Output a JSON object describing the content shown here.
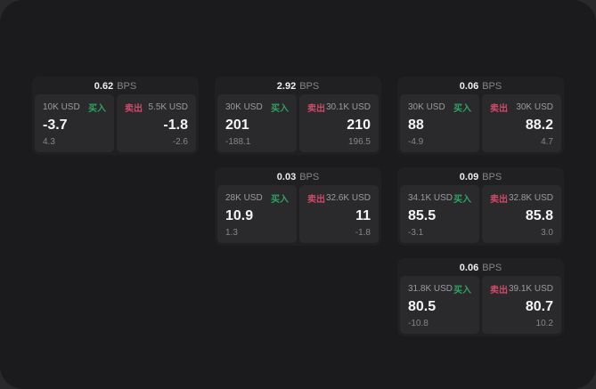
{
  "page": {
    "unit_label": "BPS",
    "buy_label": "买入",
    "sell_label": "卖出"
  },
  "colors": {
    "backdrop": "#29292c",
    "page_bg": "#1b1b1d",
    "card_bg": "#202022",
    "panel_bg": "#2a2a2d",
    "buy_green": "#2ea35f",
    "sell_red": "#cf4968"
  },
  "cards": [
    {
      "bps": "0.62",
      "col": 1,
      "row": 1,
      "buy": {
        "amount": "10K USD",
        "value": "-3.7",
        "sub": "4.3"
      },
      "sell": {
        "amount": "5.5K USD",
        "value": "-1.8",
        "sub": "-2.6"
      }
    },
    {
      "bps": "2.92",
      "col": 2,
      "row": 1,
      "buy": {
        "amount": "30K USD",
        "value": "201",
        "sub": "-188.1"
      },
      "sell": {
        "amount": "30.1K USD",
        "value": "210",
        "sub": "196.5"
      }
    },
    {
      "bps": "0.06",
      "col": 3,
      "row": 1,
      "buy": {
        "amount": "30K USD",
        "value": "88",
        "sub": "-4.9"
      },
      "sell": {
        "amount": "30K USD",
        "value": "88.2",
        "sub": "4.7"
      }
    },
    {
      "bps": "0.03",
      "col": 2,
      "row": 2,
      "buy": {
        "amount": "28K USD",
        "value": "10.9",
        "sub": "1.3"
      },
      "sell": {
        "amount": "32.6K USD",
        "value": "11",
        "sub": "-1.8"
      }
    },
    {
      "bps": "0.09",
      "col": 3,
      "row": 2,
      "buy": {
        "amount": "34.1K USD",
        "value": "85.5",
        "sub": "-3.1"
      },
      "sell": {
        "amount": "32.8K USD",
        "value": "85.8",
        "sub": "3.0"
      }
    },
    {
      "bps": "0.06",
      "col": 3,
      "row": 3,
      "buy": {
        "amount": "31.8K USD",
        "value": "80.5",
        "sub": "-10.8"
      },
      "sell": {
        "amount": "39.1K USD",
        "value": "80.7",
        "sub": "10.2"
      }
    }
  ]
}
